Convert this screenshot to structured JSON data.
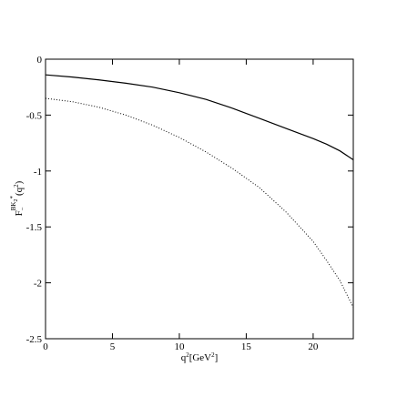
{
  "chart_data": {
    "type": "line",
    "xlabel": [
      "q",
      "2",
      "[GeV",
      "2",
      "]"
    ],
    "ylabel": [
      "F",
      "−",
      "BK",
      "2",
      "*",
      "(q",
      "2",
      ")"
    ],
    "x": [
      0,
      2,
      4,
      6,
      8,
      10,
      12,
      14,
      16,
      18,
      20,
      21,
      22,
      23
    ],
    "series": [
      {
        "color": "#000000",
        "style": "solid",
        "values": [
          -0.14,
          -0.16,
          -0.185,
          -0.215,
          -0.25,
          -0.3,
          -0.36,
          -0.44,
          -0.53,
          -0.62,
          -0.71,
          -0.76,
          -0.82,
          -0.9
        ]
      },
      {
        "color": "#000000",
        "style": "dotted",
        "values": [
          -0.35,
          -0.38,
          -0.43,
          -0.5,
          -0.59,
          -0.7,
          -0.83,
          -0.98,
          -1.15,
          -1.37,
          -1.63,
          -1.8,
          -1.98,
          -2.22
        ]
      }
    ],
    "xlim": [
      0,
      23
    ],
    "xticks": [
      0,
      5,
      10,
      15,
      20
    ],
    "ylim": [
      -2.5,
      0
    ],
    "yticks": [
      0,
      -0.5,
      -1,
      -1.5,
      -2,
      -2.5
    ]
  }
}
